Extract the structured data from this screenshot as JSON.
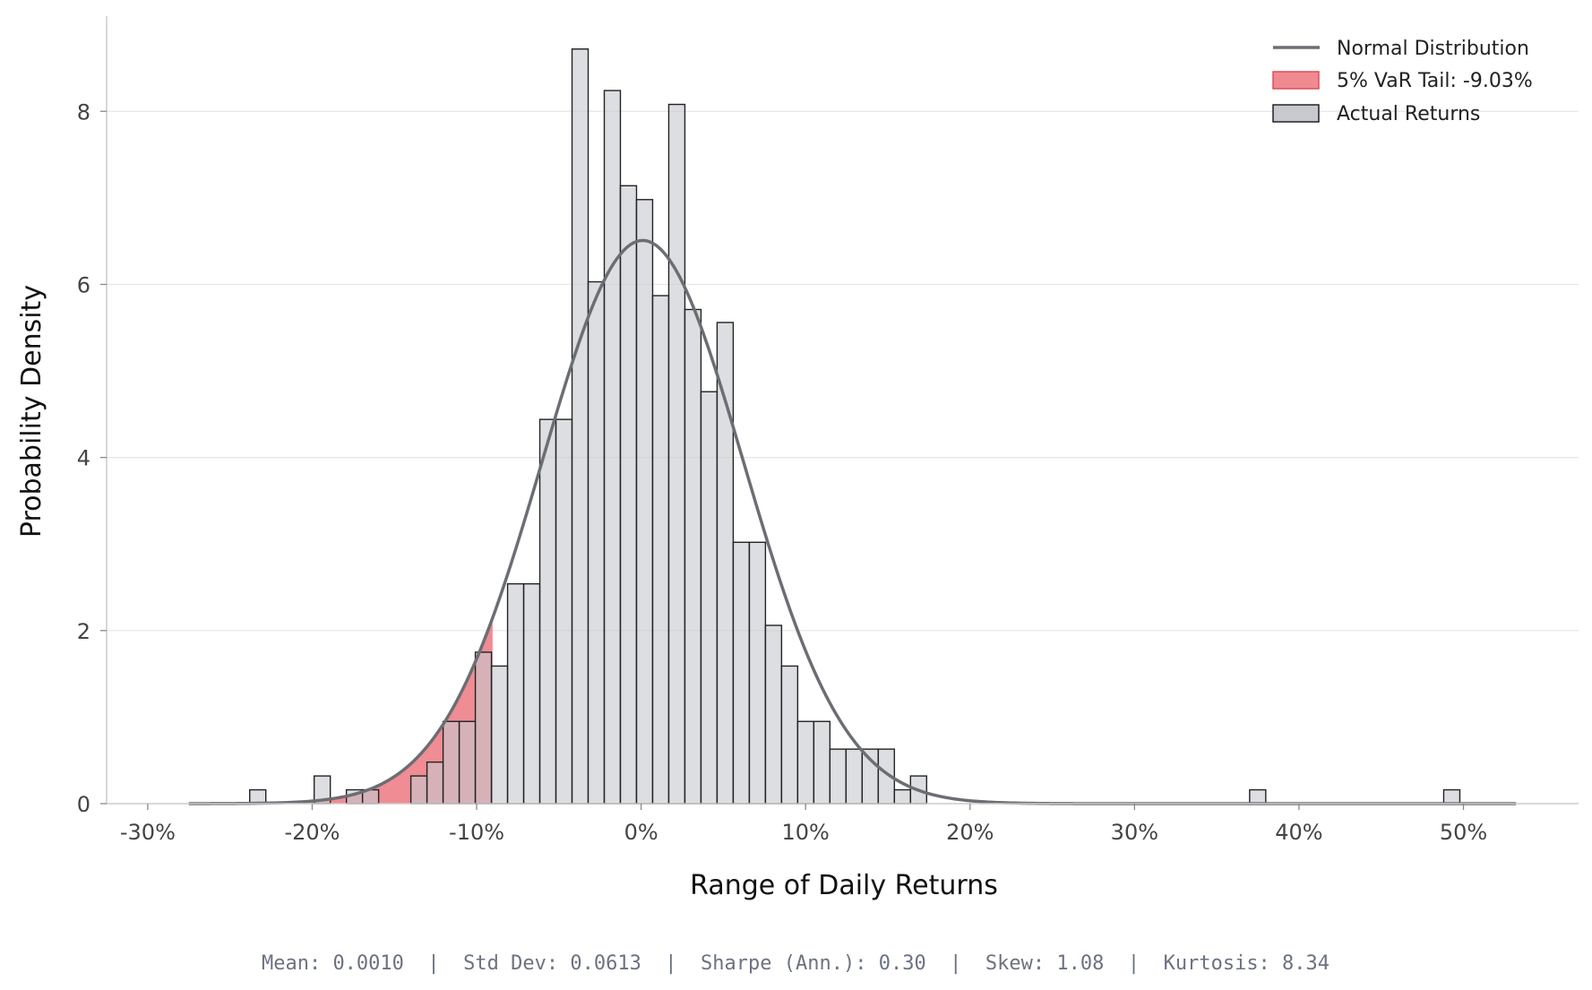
{
  "chart_data": {
    "type": "bar",
    "title": "",
    "xlabel": "Range of Daily Returns",
    "ylabel": "Probability Density",
    "xlim": [
      -0.325,
      0.57
    ],
    "ylim": [
      0,
      9.1
    ],
    "x_ticks": [
      -0.3,
      -0.2,
      -0.1,
      0,
      0.1,
      0.2,
      0.3,
      0.4,
      0.5
    ],
    "x_tick_labels": [
      "-30%",
      "-20%",
      "-10%",
      "0%",
      "10%",
      "20%",
      "30%",
      "40%",
      "50%"
    ],
    "y_ticks": [
      0,
      2,
      4,
      6,
      8
    ],
    "y_tick_labels": [
      "0",
      "2",
      "4",
      "6",
      "8"
    ],
    "grid": "horizontal",
    "legend_position": "top-right",
    "legend": [
      {
        "label": "Normal Distribution",
        "kind": "line",
        "color": "#6b6e73"
      },
      {
        "label": "5% VaR Tail: -9.03%",
        "kind": "patch",
        "color": "#f08a90",
        "edge": "#d9505a"
      },
      {
        "label": "Actual Returns",
        "kind": "patch",
        "color": "#c6cacf",
        "edge": "#222222"
      }
    ],
    "histogram": {
      "name": "Actual Returns",
      "bin_width": 0.0098,
      "bin_starts": [
        -0.238,
        -0.1988,
        -0.1792,
        -0.1694,
        -0.14,
        -0.1302,
        -0.1204,
        -0.1106,
        -0.1008,
        -0.091,
        -0.0812,
        -0.0714,
        -0.0616,
        -0.0518,
        -0.042,
        -0.0322,
        -0.0224,
        -0.0126,
        -0.0028,
        0.007,
        0.0168,
        0.0266,
        0.0364,
        0.0462,
        0.056,
        0.0658,
        0.0756,
        0.0854,
        0.0952,
        0.105,
        0.1148,
        0.1246,
        0.1344,
        0.1442,
        0.154,
        0.1638,
        0.37,
        0.488
      ],
      "densities": [
        0.16,
        0.32,
        0.16,
        0.16,
        0.32,
        0.48,
        0.95,
        0.95,
        1.75,
        1.59,
        2.54,
        2.54,
        4.44,
        4.44,
        8.72,
        6.03,
        8.24,
        7.14,
        6.98,
        5.87,
        8.08,
        5.71,
        4.76,
        5.56,
        3.02,
        3.02,
        2.06,
        1.59,
        0.95,
        0.95,
        0.63,
        0.63,
        0.63,
        0.63,
        0.16,
        0.32,
        0.16,
        0.16
      ]
    },
    "normal_curve": {
      "name": "Normal Distribution",
      "mean": 0.001,
      "std": 0.0613,
      "x_range": [
        -0.275,
        0.532
      ]
    },
    "var_tail": {
      "label": "5% VaR Tail: -9.03%",
      "threshold": -0.0903
    },
    "colors": {
      "hist_fill": "#c6cacf",
      "hist_edge": "#222222",
      "tail_fill": "#ea5f69",
      "curve": "#6b6e73",
      "grid": "#e6e6e6",
      "axis": "#cccccc"
    }
  },
  "stats_text": "Mean: 0.0010  |  Std Dev: 0.0613  |  Sharpe (Ann.): 0.30  |  Skew: 1.08  |  Kurtosis: 8.34"
}
